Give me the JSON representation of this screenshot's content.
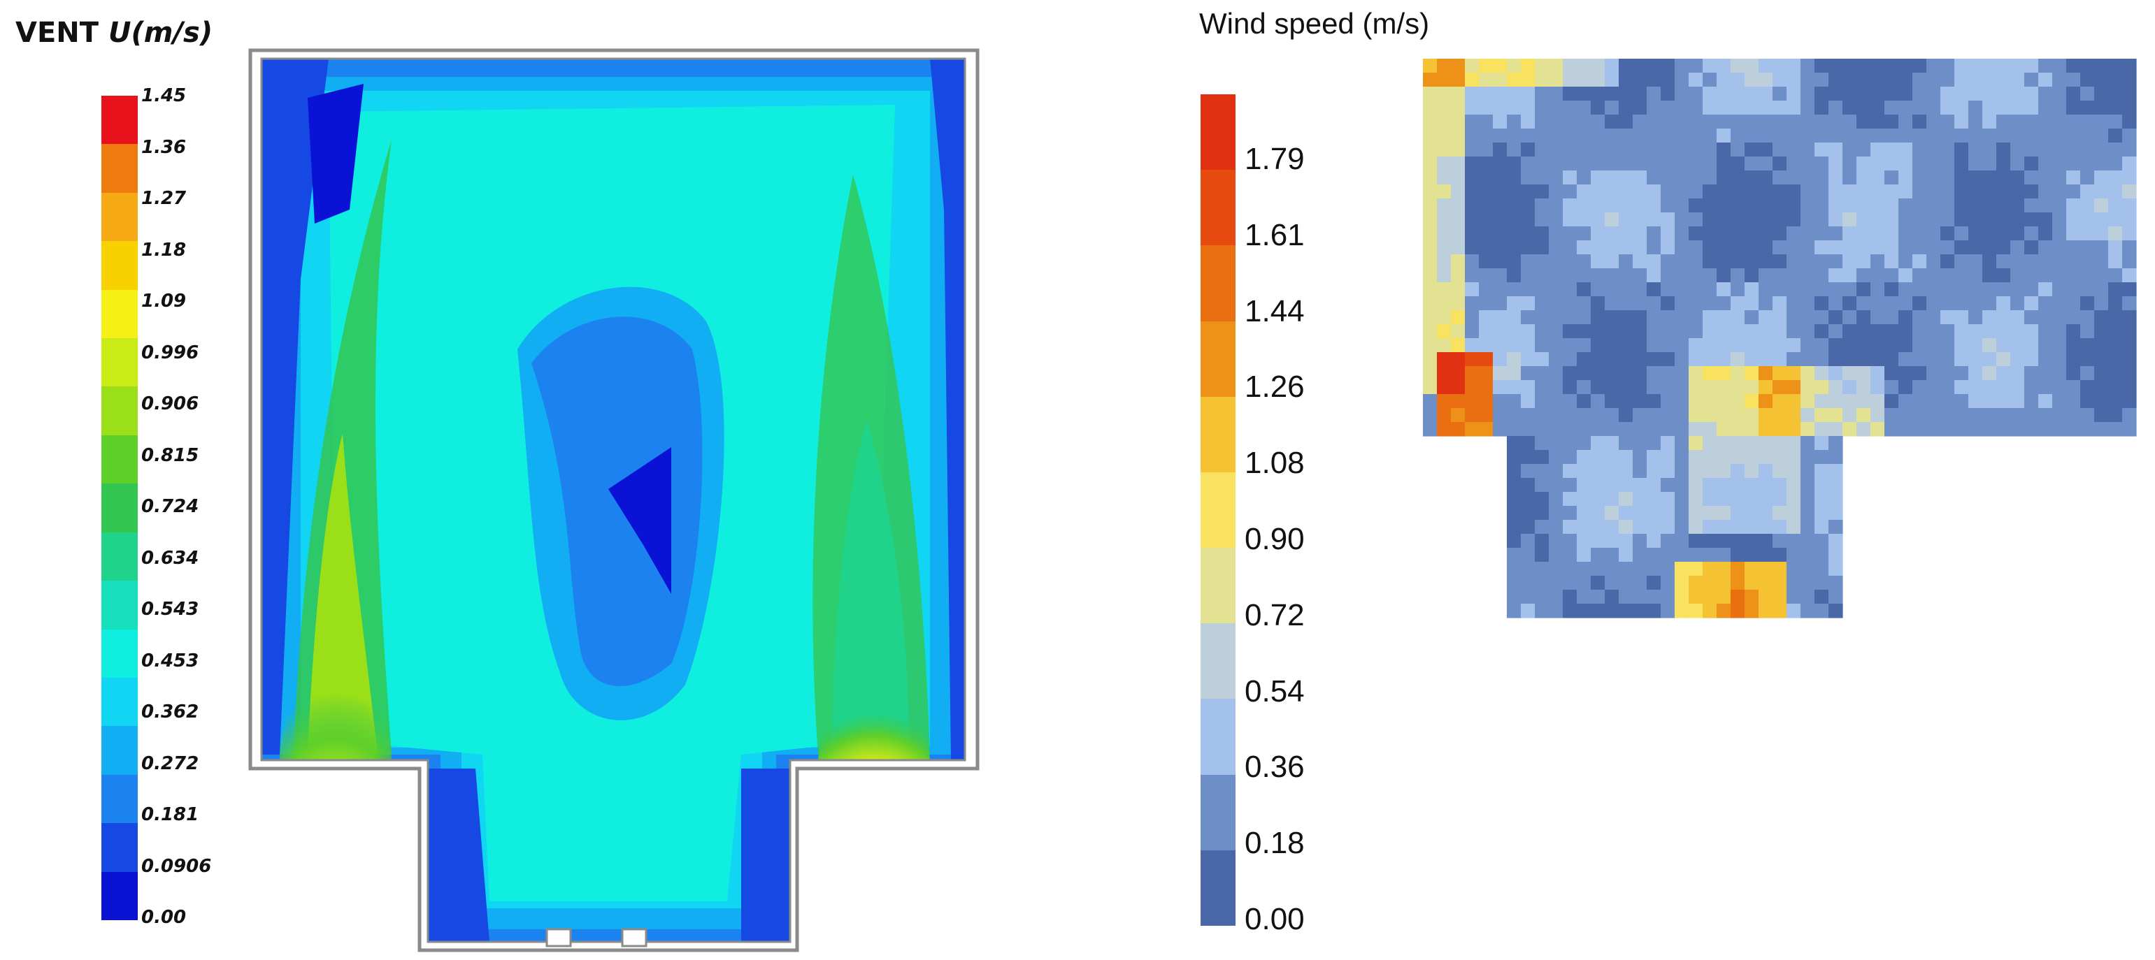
{
  "chart_data": [
    {
      "type": "heatmap",
      "title": "VENT U(m/s)",
      "title_parts": {
        "prefix": "VENT",
        "variable": "U(m/s)"
      },
      "colorbar_ticks": [
        "1.45",
        "1.36",
        "1.27",
        "1.18",
        "1.09",
        "0.996",
        "0.906",
        "0.815",
        "0.724",
        "0.634",
        "0.543",
        "0.453",
        "0.362",
        "0.272",
        "0.181",
        "0.0906",
        "0.00"
      ],
      "colorbar_range": [
        0.0,
        1.45
      ],
      "colorbar_colors": [
        "#e8121c",
        "#ef7a10",
        "#f7aa14",
        "#f7d200",
        "#f5f016",
        "#c9ec16",
        "#9adf18",
        "#5fcf29",
        "#33c650",
        "#1fd48a",
        "#16e0bb",
        "#10eee0",
        "#10d6f3",
        "#12aef3",
        "#1c82f0",
        "#1648e3",
        "#0a12d6"
      ],
      "colormap": "jet",
      "grid": false
    },
    {
      "type": "heatmap",
      "title": "Wind speed  (m/s)",
      "colorbar_ticks": [
        "1.79",
        "1.61",
        "1.44",
        "1.26",
        "1.08",
        "0.90",
        "0.72",
        "0.54",
        "0.36",
        "0.18",
        "0.00"
      ],
      "colorbar_range": [
        0.0,
        1.97
      ],
      "colorbar_colors": [
        "#e03112",
        "#e64a0e",
        "#ea6f10",
        "#ee9119",
        "#f5c233",
        "#f9e25f",
        "#e3e293",
        "#bccfda",
        "#a3c1eb",
        "#6e8ec7",
        "#4a68a8"
      ],
      "colormap": "blue-yellow-red",
      "grid": false
    }
  ]
}
